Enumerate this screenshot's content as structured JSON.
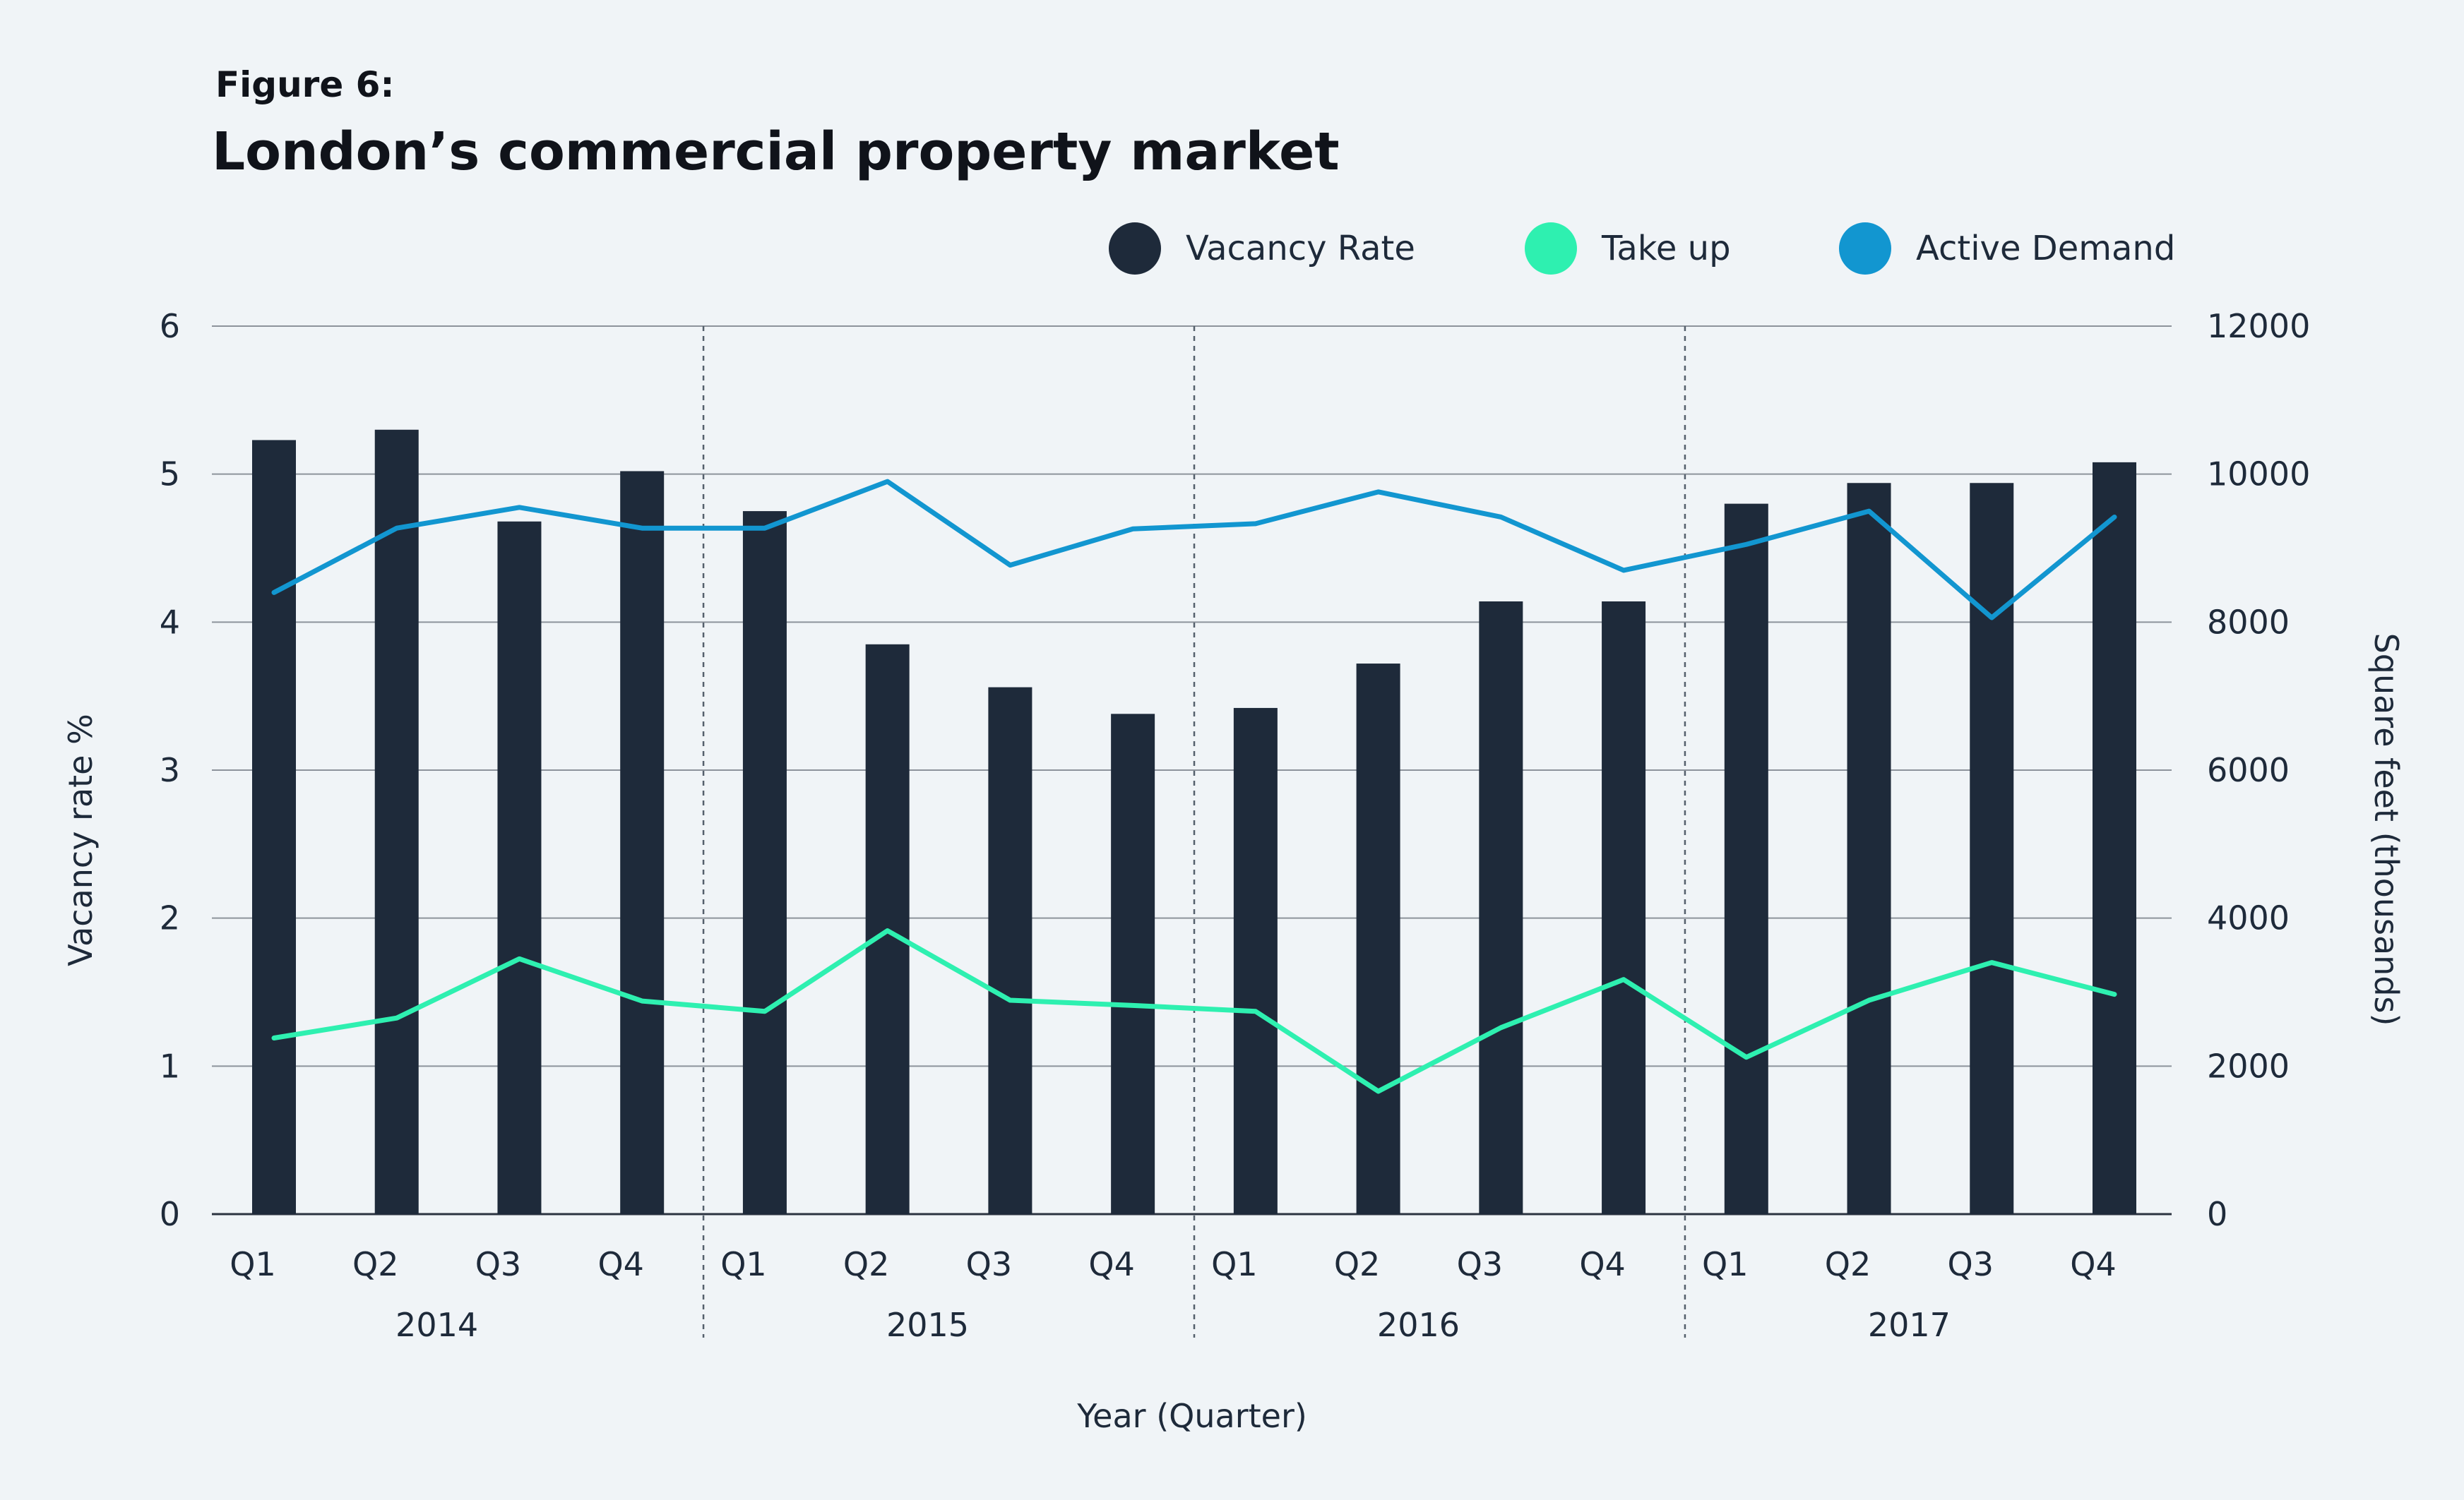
{
  "figure_label": "Figure 6:",
  "chart_data": {
    "type": "bar",
    "title": "London’s commercial property market",
    "xlabel": "Year (Quarter)",
    "ylabel": "Vacancy rate %",
    "y2label": "Square feet (thousands)",
    "ylim": [
      0,
      6
    ],
    "y2lim": [
      0,
      12000
    ],
    "yticks": [
      "0",
      "1",
      "2",
      "3",
      "4",
      "5",
      "6"
    ],
    "y2ticks": [
      "0",
      "2000",
      "4000",
      "6000",
      "8000",
      "10000",
      "12000"
    ],
    "categories": [
      "Q1",
      "Q2",
      "Q3",
      "Q4",
      "Q1",
      "Q2",
      "Q3",
      "Q4",
      "Q1",
      "Q2",
      "Q3",
      "Q4",
      "Q1",
      "Q2",
      "Q3",
      "Q4"
    ],
    "groups": [
      "2014",
      "2015",
      "2016",
      "2017"
    ],
    "grid": true,
    "legend_position": "top-right",
    "series": [
      {
        "name": "Vacancy Rate",
        "type": "bar",
        "axis": "left",
        "color": "#1e2a3a",
        "values": [
          5.23,
          5.3,
          4.68,
          5.02,
          4.75,
          3.85,
          3.56,
          3.38,
          3.42,
          3.72,
          4.14,
          4.14,
          4.8,
          4.94,
          4.94,
          5.08
        ]
      },
      {
        "name": "Take up",
        "type": "line",
        "axis": "right",
        "color": "#2ef0b0",
        "values": [
          2380,
          2650,
          3450,
          2880,
          2740,
          3830,
          2890,
          2820,
          2740,
          1660,
          2520,
          3170,
          2120,
          2890,
          3400,
          2970
        ]
      },
      {
        "name": "Active Demand",
        "type": "line",
        "axis": "right",
        "color": "#1296d0",
        "values": [
          8400,
          9270,
          9550,
          9270,
          9270,
          9900,
          8770,
          9260,
          9330,
          9760,
          9420,
          8700,
          9050,
          9500,
          8060,
          9420
        ]
      }
    ]
  }
}
